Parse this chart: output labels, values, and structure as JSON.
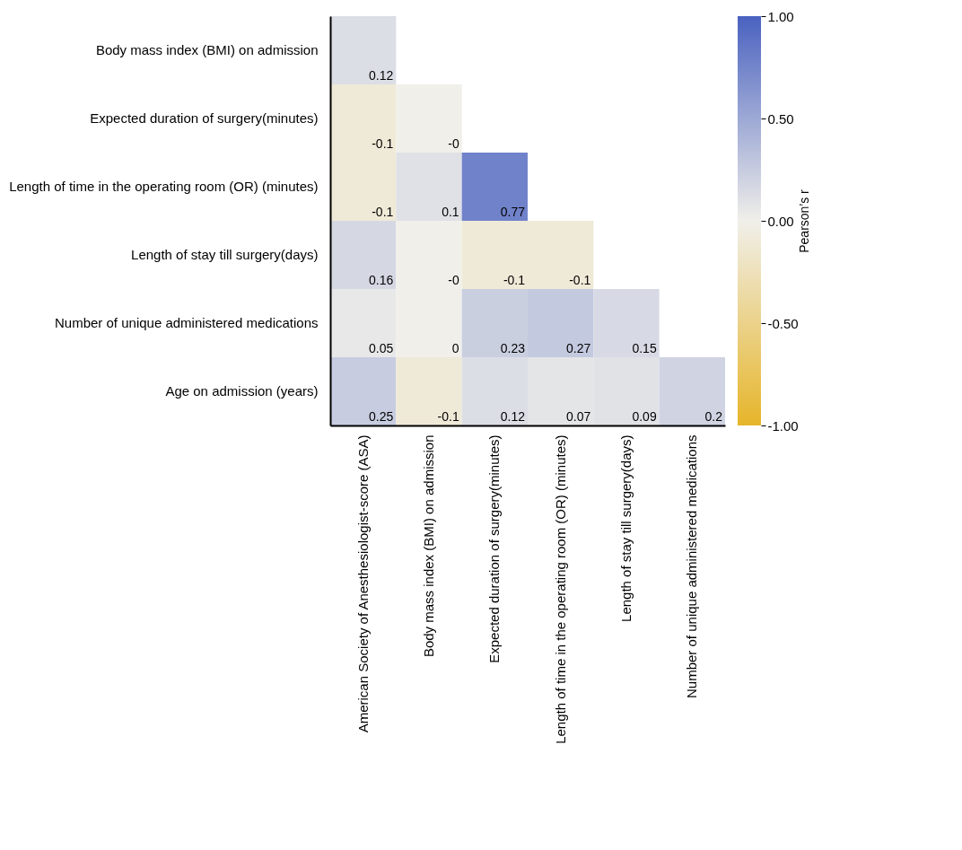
{
  "chart_data": {
    "type": "heatmap",
    "categories": [
      "American Society of Anesthesiologist-score (ASA)",
      "Body mass index (BMI) on admission",
      "Expected duration of surgery(minutes)",
      "Length of time in the operating room (OR) (minutes)",
      "Length of stay till surgery(days)",
      "Number of unique administered medications"
    ],
    "y_categories": [
      "Body mass index (BMI) on admission",
      "Expected duration of surgery(minutes)",
      "Length of time in the operating room (OR) (minutes)",
      "Length of stay till surgery(days)",
      "Number of unique administered medications",
      "Age on admission (years)"
    ],
    "cells": [
      [
        0.12,
        null,
        null,
        null,
        null,
        null
      ],
      [
        -0.1,
        0,
        null,
        null,
        null,
        null
      ],
      [
        -0.1,
        0.1,
        0.77,
        null,
        null,
        null
      ],
      [
        0.16,
        0,
        -0.1,
        -0.1,
        null,
        null
      ],
      [
        0.05,
        0,
        0.23,
        0.27,
        0.15,
        null
      ],
      [
        0.25,
        -0.1,
        0.12,
        0.07,
        0.09,
        0.2
      ]
    ],
    "cell_labels": [
      [
        "0.12",
        null,
        null,
        null,
        null,
        null
      ],
      [
        "-0.1",
        "-0",
        null,
        null,
        null,
        null
      ],
      [
        "-0.1",
        "0.1",
        "0.77",
        null,
        null,
        null
      ],
      [
        "0.16",
        "-0",
        "-0.1",
        "-0.1",
        null,
        null
      ],
      [
        "0.05",
        "0",
        "0.23",
        "0.27",
        "0.15",
        null
      ],
      [
        "0.25",
        "-0.1",
        "0.12",
        "0.07",
        "0.09",
        "0.2"
      ]
    ],
    "clabel": "Pearson’s r",
    "clim": [
      -1,
      1
    ],
    "cticks": [
      {
        "value": 1,
        "label": "1.00"
      },
      {
        "value": 0.5,
        "label": "0.50"
      },
      {
        "value": 0,
        "label": "0.00"
      },
      {
        "value": -0.5,
        "label": "-0.50"
      },
      {
        "value": -1,
        "label": "-1.00"
      }
    ]
  }
}
